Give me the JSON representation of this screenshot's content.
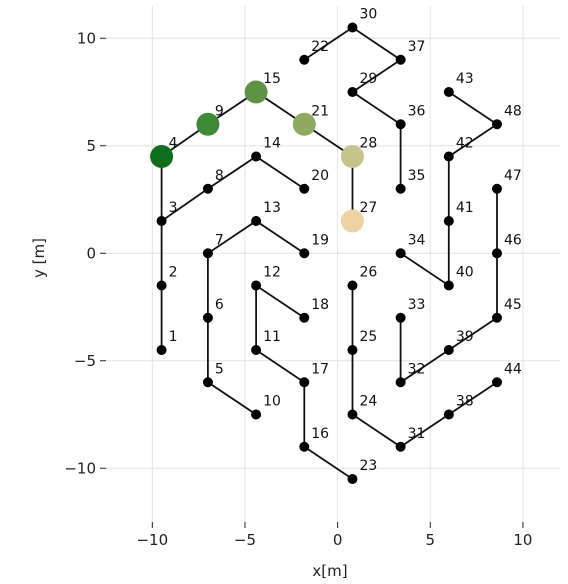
{
  "chart_data": {
    "type": "scatter",
    "title": "",
    "xlabel": "x[m]",
    "ylabel": "y [m]",
    "xlim": [
      -12.5,
      12.0
    ],
    "ylim": [
      -12.5,
      11.5
    ],
    "xticks": [
      {
        "value": -10,
        "label": "−10"
      },
      {
        "value": -5,
        "label": "−5"
      },
      {
        "value": 0,
        "label": "0"
      },
      {
        "value": 5,
        "label": "5"
      },
      {
        "value": 10,
        "label": "10"
      }
    ],
    "yticks": [
      {
        "value": 10,
        "label": "10"
      },
      {
        "value": 5,
        "label": "5"
      },
      {
        "value": 0,
        "label": "0"
      },
      {
        "value": -5,
        "label": "−5"
      },
      {
        "value": -10,
        "label": "−10"
      }
    ],
    "grid": true,
    "points": [
      {
        "id": "1",
        "x": -9.5,
        "y": -4.5
      },
      {
        "id": "2",
        "x": -9.5,
        "y": -1.5
      },
      {
        "id": "3",
        "x": -9.5,
        "y": 1.5
      },
      {
        "id": "4",
        "x": -9.5,
        "y": 4.5
      },
      {
        "id": "5",
        "x": -7.0,
        "y": -6.0
      },
      {
        "id": "6",
        "x": -7.0,
        "y": -3.0
      },
      {
        "id": "7",
        "x": -7.0,
        "y": 0.0
      },
      {
        "id": "8",
        "x": -7.0,
        "y": 3.0
      },
      {
        "id": "9",
        "x": -7.0,
        "y": 6.0
      },
      {
        "id": "10",
        "x": -4.4,
        "y": -7.5
      },
      {
        "id": "11",
        "x": -4.4,
        "y": -4.5
      },
      {
        "id": "12",
        "x": -4.4,
        "y": -1.5
      },
      {
        "id": "13",
        "x": -4.4,
        "y": 1.5
      },
      {
        "id": "14",
        "x": -4.4,
        "y": 4.5
      },
      {
        "id": "15",
        "x": -4.4,
        "y": 7.5
      },
      {
        "id": "16",
        "x": -1.8,
        "y": -9.0
      },
      {
        "id": "17",
        "x": -1.8,
        "y": -6.0
      },
      {
        "id": "18",
        "x": -1.8,
        "y": -3.0
      },
      {
        "id": "19",
        "x": -1.8,
        "y": 0.0
      },
      {
        "id": "20",
        "x": -1.8,
        "y": 3.0
      },
      {
        "id": "21",
        "x": -1.8,
        "y": 6.0
      },
      {
        "id": "22",
        "x": -1.8,
        "y": 9.0
      },
      {
        "id": "23",
        "x": 0.8,
        "y": -10.5
      },
      {
        "id": "24",
        "x": 0.8,
        "y": -7.5
      },
      {
        "id": "25",
        "x": 0.8,
        "y": -4.5
      },
      {
        "id": "26",
        "x": 0.8,
        "y": -1.5
      },
      {
        "id": "27",
        "x": 0.8,
        "y": 1.5
      },
      {
        "id": "28",
        "x": 0.8,
        "y": 4.5
      },
      {
        "id": "29",
        "x": 0.8,
        "y": 7.5
      },
      {
        "id": "30",
        "x": 0.8,
        "y": 10.5
      },
      {
        "id": "31",
        "x": 3.4,
        "y": -9.0
      },
      {
        "id": "32",
        "x": 3.4,
        "y": -6.0
      },
      {
        "id": "33",
        "x": 3.4,
        "y": -3.0
      },
      {
        "id": "34",
        "x": 3.4,
        "y": 0.0
      },
      {
        "id": "35",
        "x": 3.4,
        "y": 3.0
      },
      {
        "id": "36",
        "x": 3.4,
        "y": 6.0
      },
      {
        "id": "37",
        "x": 3.4,
        "y": 9.0
      },
      {
        "id": "38",
        "x": 6.0,
        "y": -7.5
      },
      {
        "id": "39",
        "x": 6.0,
        "y": -4.5
      },
      {
        "id": "40",
        "x": 6.0,
        "y": -1.5
      },
      {
        "id": "41",
        "x": 6.0,
        "y": 1.5
      },
      {
        "id": "42",
        "x": 6.0,
        "y": 4.5
      },
      {
        "id": "43",
        "x": 6.0,
        "y": 7.5
      },
      {
        "id": "44",
        "x": 8.6,
        "y": -6.0
      },
      {
        "id": "45",
        "x": 8.6,
        "y": -3.0
      },
      {
        "id": "46",
        "x": 8.6,
        "y": 0.0
      },
      {
        "id": "47",
        "x": 8.6,
        "y": 3.0
      },
      {
        "id": "48",
        "x": 8.6,
        "y": 6.0
      }
    ],
    "highlighted": [
      {
        "id": "4",
        "color": "#0f6e1b"
      },
      {
        "id": "9",
        "color": "#3f8a36"
      },
      {
        "id": "15",
        "color": "#5f9247"
      },
      {
        "id": "21",
        "color": "#8faa60"
      },
      {
        "id": "28",
        "color": "#c6c48a"
      },
      {
        "id": "27",
        "color": "#f0d2a2"
      }
    ],
    "paths": [
      [
        "1",
        "2",
        "3",
        "4"
      ],
      [
        "3",
        "8",
        "14",
        "20"
      ],
      [
        "4",
        "9",
        "15",
        "21",
        "28",
        "27"
      ],
      [
        "10",
        "5",
        "6",
        "7",
        "13",
        "19"
      ],
      [
        "18",
        "12",
        "11",
        "17",
        "16",
        "23"
      ],
      [
        "22",
        "30",
        "37",
        "29",
        "36",
        "35"
      ],
      [
        "26",
        "25",
        "24",
        "31",
        "38",
        "44"
      ],
      [
        "33",
        "32",
        "39",
        "45",
        "46",
        "47"
      ],
      [
        "34",
        "40",
        "41",
        "42",
        "48",
        "43"
      ]
    ]
  }
}
